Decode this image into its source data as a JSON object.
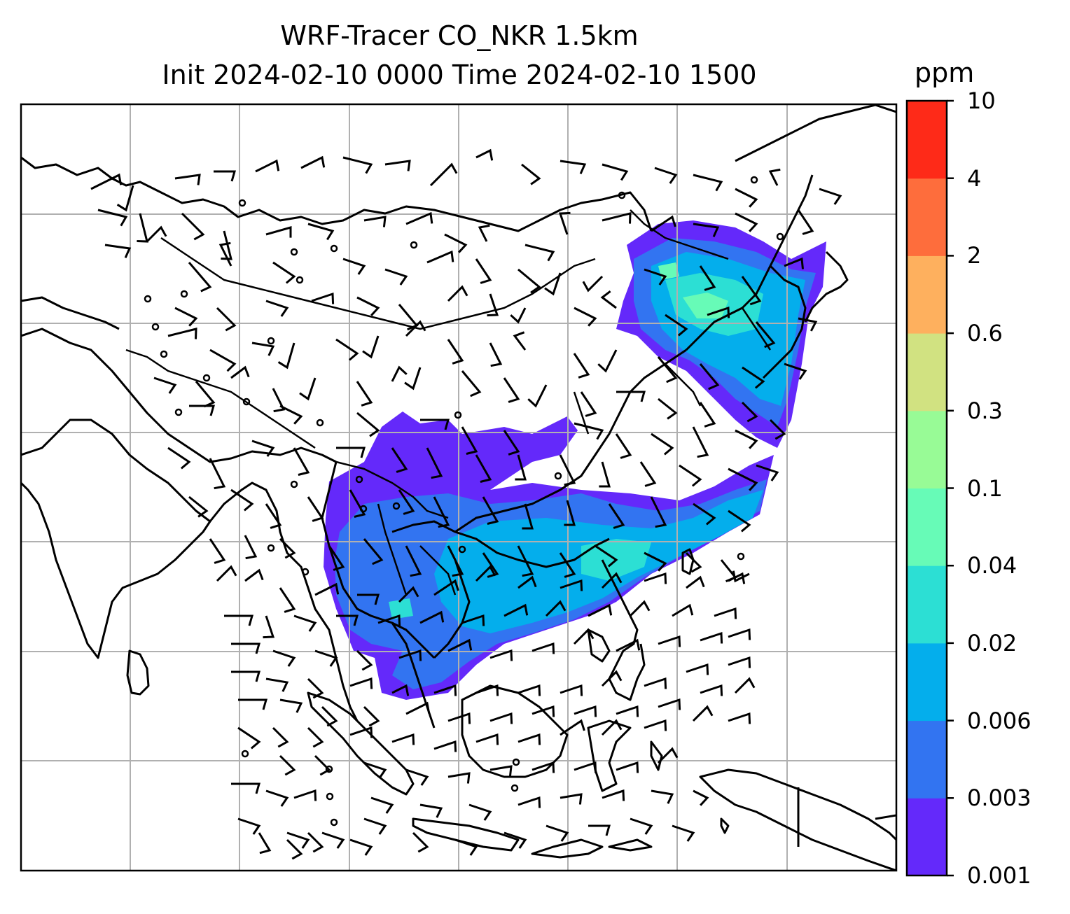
{
  "title": {
    "line1": "WRF-Tracer CO_NKR 1.5km",
    "line2": "Init 2024-02-10 0000 Time 2024-02-10 1500"
  },
  "colorbar": {
    "unit": "ppm",
    "levels": [
      "0.001",
      "0.003",
      "0.006",
      "0.02",
      "0.04",
      "0.1",
      "0.3",
      "0.6",
      "2",
      "4",
      "10"
    ],
    "colors": [
      "#6429fa",
      "#3274f1",
      "#04aeec",
      "#2cdfd4",
      "#67fbb7",
      "#98fb96",
      "#d1e281",
      "#feb05e",
      "#fe6d3c",
      "#fe2a18"
    ]
  },
  "map": {
    "projection": "lat-lon",
    "gridlines": true,
    "features": [
      "coastlines",
      "country-borders",
      "wind-barbs",
      "CO tracer plume"
    ]
  }
}
